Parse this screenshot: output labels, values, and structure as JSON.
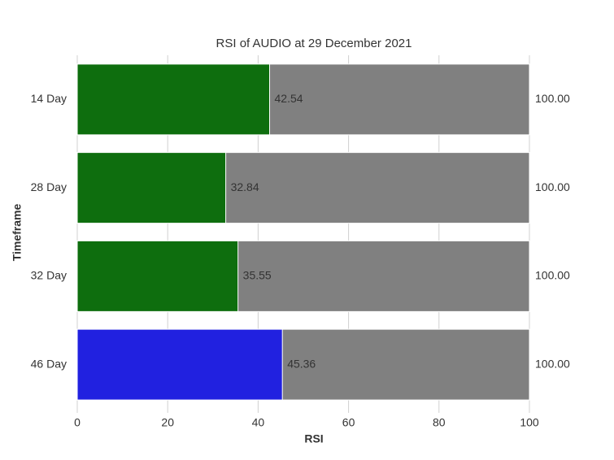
{
  "chart_data": {
    "type": "bar",
    "orientation": "horizontal",
    "title": "RSI of AUDIO at 29 December 2021",
    "xlabel": "RSI",
    "ylabel": "Timeframe",
    "categories": [
      "14 Day",
      "28 Day",
      "32 Day",
      "46 Day"
    ],
    "values": [
      42.54,
      32.84,
      35.55,
      45.36
    ],
    "colors": [
      "#0e6e0e",
      "#0e6e0e",
      "#0e6e0e",
      "#2121e0"
    ],
    "background_values": [
      100,
      100,
      100,
      100
    ],
    "background_value_labels": [
      "100.00",
      "100.00",
      "100.00",
      "100.00"
    ],
    "background_color": "#808080",
    "xlim": [
      0,
      100
    ],
    "xticks": [
      0,
      20,
      40,
      60,
      80,
      100
    ],
    "grid": true
  }
}
